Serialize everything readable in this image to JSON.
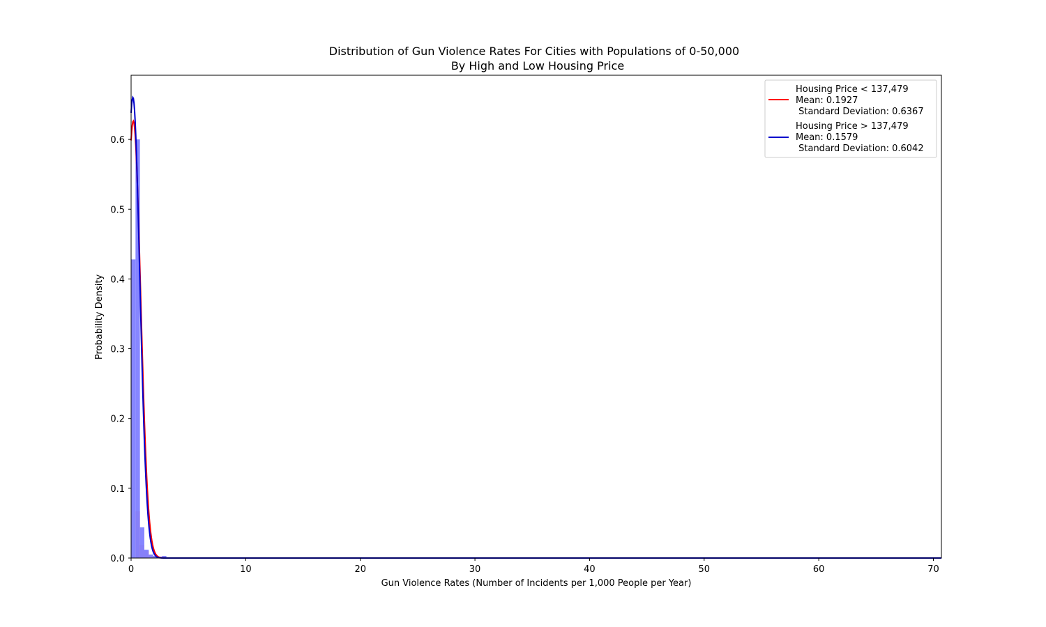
{
  "chart_data": {
    "type": "bar",
    "title": "Distribution of Gun Violence Rates For Cities with Populations of 0-50,000",
    "subtitle": "By High and Low Housing Price",
    "xlabel": "Gun Violence Rates (Number of Incidents per 1,000 People per Year)",
    "ylabel": "Probability Density",
    "xlim": [
      0,
      70.7
    ],
    "ylim": [
      0,
      0.692
    ],
    "x_ticks": [
      0,
      10,
      20,
      30,
      40,
      50,
      60,
      70
    ],
    "y_ticks": [
      0.0,
      0.1,
      0.2,
      0.3,
      0.4,
      0.5,
      0.6
    ],
    "grid": false,
    "legend_position": "top-right",
    "bin_width": 0.385,
    "series": [
      {
        "name": "Housing Price < 137,479",
        "legend_lines": [
          "Housing Price < 137,479",
          "Mean: 0.1927",
          " Standard Deviation: 0.6367"
        ],
        "mean": 0.1927,
        "std": 0.6367,
        "bar_color": "#ff8080",
        "line_color": "#ff0000",
        "bins": [
          {
            "x": 0.0,
            "value": 0.0
          },
          {
            "x": 0.385,
            "value": 0.067
          },
          {
            "x": 0.77,
            "value": 0.019
          },
          {
            "x": 1.155,
            "value": 0.01
          },
          {
            "x": 1.54,
            "value": 0.004
          },
          {
            "x": 1.925,
            "value": 0.002
          },
          {
            "x": 2.31,
            "value": 0.001
          },
          {
            "x": 2.695,
            "value": 0.001
          }
        ]
      },
      {
        "name": "Housing Price > 137,479",
        "legend_lines": [
          "Housing Price > 137,479",
          "Mean: 0.1579",
          " Standard Deviation: 0.6042"
        ],
        "mean": 0.1579,
        "std": 0.6042,
        "bar_color": "#8080ff",
        "line_color": "#0000cc",
        "bins": [
          {
            "x": 0.0,
            "value": 0.428
          },
          {
            "x": 0.385,
            "value": 0.6
          },
          {
            "x": 0.77,
            "value": 0.044
          },
          {
            "x": 1.155,
            "value": 0.012
          },
          {
            "x": 1.54,
            "value": 0.005
          },
          {
            "x": 1.925,
            "value": 0.003
          },
          {
            "x": 2.31,
            "value": 0.002
          },
          {
            "x": 2.695,
            "value": 0.003
          },
          {
            "x": 3.08,
            "value": 0.001
          }
        ]
      }
    ]
  }
}
